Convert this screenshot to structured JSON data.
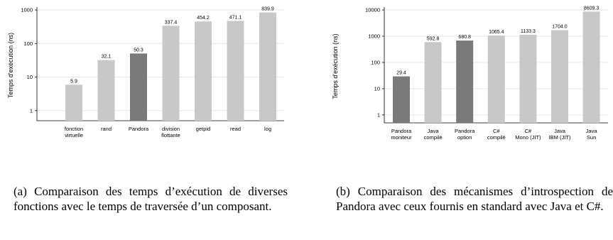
{
  "colors": {
    "light_bar": "#c8c8c8",
    "dark_bar": "#7a7a7a"
  },
  "chart_data": [
    {
      "type": "bar",
      "ylabel": "Temps d'exécution (ns)",
      "yscale": "log",
      "yticks": [
        "1",
        "10",
        "100",
        "1000"
      ],
      "ylim": [
        0.5,
        1000
      ],
      "grid": true,
      "categories": [
        [
          "fonction",
          "virtuelle"
        ],
        [
          "rand"
        ],
        [
          "Pandora"
        ],
        [
          "division",
          "flottante"
        ],
        [
          "getpid"
        ],
        [
          "read"
        ],
        [
          "log"
        ]
      ],
      "values": [
        5.9,
        32.1,
        50.3,
        337.4,
        454.2,
        471.1,
        839.9
      ],
      "value_labels": [
        "5.9",
        "32.1",
        "50.3",
        "337.4",
        "454.2",
        "471.1",
        "839.9"
      ],
      "highlight": [
        false,
        false,
        true,
        false,
        false,
        false,
        false
      ]
    },
    {
      "type": "bar",
      "ylabel": "Temps d'exécution (ns)",
      "yscale": "log",
      "yticks": [
        "1",
        "10",
        "100",
        "1000",
        "10000"
      ],
      "ylim": [
        0.5,
        10000
      ],
      "grid": true,
      "categories": [
        [
          "Pandora",
          "moniteur"
        ],
        [
          "Java",
          "compilé"
        ],
        [
          "Pandora",
          "option"
        ],
        [
          "C#",
          "compilé"
        ],
        [
          "C#",
          "Mono (JIT)"
        ],
        [
          "Java",
          "IBM (JIT)"
        ],
        [
          "Java",
          "Sun"
        ]
      ],
      "values": [
        29.4,
        592.8,
        680.8,
        1065.4,
        1133.3,
        1704.0,
        8609.3
      ],
      "value_labels": [
        "29.4",
        "592.8",
        "680.8",
        "1065.4",
        "1133.3",
        "1704.0",
        "8609.3"
      ],
      "highlight": [
        true,
        false,
        true,
        false,
        false,
        false,
        false
      ]
    }
  ],
  "captions": {
    "a": "(a) Comparaison des temps d’exécution de diverses fonctions avec le temps de traversée d’un composant.",
    "b": "(b) Comparaison des mécanismes d’introspection de Pandora avec ceux fournis en standard avec Java et C#."
  }
}
